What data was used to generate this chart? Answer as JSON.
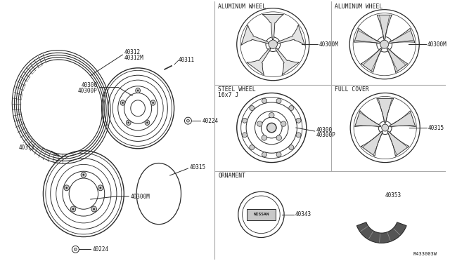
{
  "bg_color": "#ffffff",
  "line_color": "#2a2a2a",
  "divider_color": "#aaaaaa",
  "text_color": "#1a1a1a",
  "fig_width": 6.4,
  "fig_height": 3.72,
  "section_labels": {
    "alum1": "ALUMINUM WHEEL",
    "alum2": "ALUMINUM WHEEL",
    "steel": "STEEL WHEEL",
    "steel2": "16x7 J",
    "full": "FULL COVER",
    "ornament": "ORNAMENT"
  },
  "part_labels": {
    "40312": "40312",
    "40312M": "40312M",
    "40311_top": "40311",
    "40300_top": "40300",
    "40300P_top": "40300P",
    "40224_top": "40224",
    "40311_bot": "40311",
    "40300M_bot": "40300M",
    "40224_bot": "40224",
    "40315_bot": "40315",
    "40300M_alum1": "40300M",
    "40300M_alum2": "40300M",
    "40300_steel": "40300",
    "40300P_steel": "40300P",
    "40315_full": "40315",
    "40343": "40343",
    "40353": "40353"
  },
  "ref_code": "R433003W"
}
